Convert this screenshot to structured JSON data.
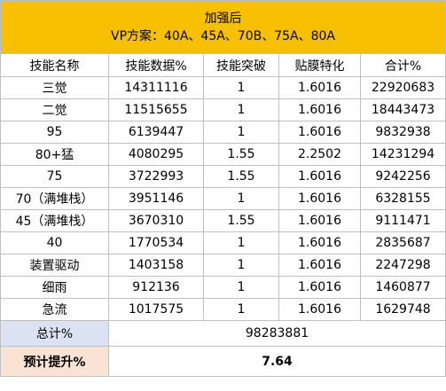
{
  "title": "加强后",
  "subtitle": "VP方案：40A、45A、70B、75A、80A",
  "columns": [
    "技能名称",
    "技能数据%",
    "技能突破",
    "贴膜特化",
    "合计%"
  ],
  "rows": [
    [
      "三觉",
      "14311116",
      "1",
      "1.6016",
      "22920683"
    ],
    [
      "二觉",
      "11515655",
      "1",
      "1.6016",
      "18443473"
    ],
    [
      "95",
      "6139447",
      "1",
      "1.6016",
      "9832938"
    ],
    [
      "80+猛",
      "4080295",
      "1.55",
      "2.2502",
      "14231294"
    ],
    [
      "75",
      "3722993",
      "1.55",
      "1.6016",
      "9242256"
    ],
    [
      "70（满堆栈）",
      "3951146",
      "1",
      "1.6016",
      "6328155"
    ],
    [
      "45（满堆栈）",
      "3670310",
      "1.55",
      "1.6016",
      "9111471"
    ],
    [
      "40",
      "1770534",
      "1",
      "1.6016",
      "2835687"
    ],
    [
      "装置驱动",
      "1403158",
      "1",
      "1.6016",
      "2247298"
    ],
    [
      "细雨",
      "912136",
      "1",
      "1.6016",
      "1460877"
    ],
    [
      "急流",
      "1017575",
      "1",
      "1.6016",
      "1629748"
    ]
  ],
  "total": {
    "label": "总计%",
    "value": "98283881"
  },
  "predicted": {
    "label": "预计提升%",
    "value": "7.64"
  },
  "colors": {
    "header_bg": "#f6c000",
    "total_label_bg": "#dbe3f3",
    "predicted_label_bg": "#fbe3d3",
    "grid": "#bfbfbf"
  }
}
